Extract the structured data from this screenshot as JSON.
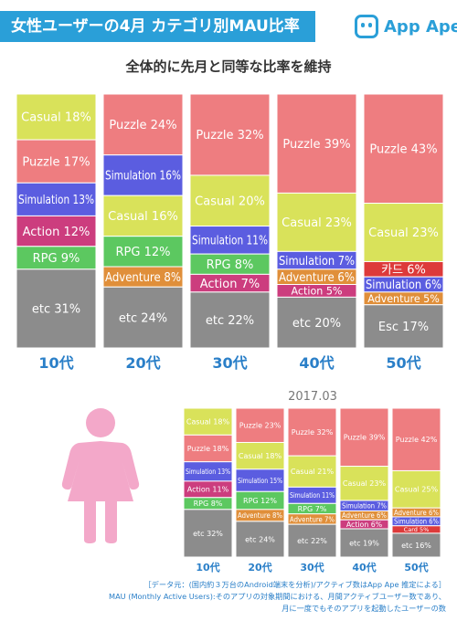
{
  "header": {
    "title": "女性ユーザーの4月 カテゴリ別MAU比率",
    "brand": "App Ape",
    "brand_icon": "app-ape-logo-icon",
    "subtitle": "全体的に先月と同等な比率を維持"
  },
  "secondary": {
    "date_label": "2017.03",
    "icon": "female-person-icon"
  },
  "footer": {
    "line1": "［データ元：(国内約３万台のAndroid端末を分析)/アクティブ数はApp Ape 推定による］",
    "line2": "MAU (Monthly Active Users):そのアプリの対象期間における、月間アクティブユーザー数であり、",
    "line3": "月に一度でもそのアプリを起動したユーザーの数"
  },
  "colors": {
    "Casual": "#d9e25a",
    "Puzzle": "#ee7d80",
    "Simulation": "#5b5de0",
    "Action": "#cc3d7e",
    "RPG": "#5cc860",
    "Adventure": "#e08f3a",
    "etc": "#8c8c8c",
    "カード": "#dd3a3a",
    "Card": "#dd3a3a",
    "Esc": "#8c8c8c",
    "age_label": "#2a7fc8",
    "title_bg": "#2a9fd8"
  },
  "chart_data": [
    {
      "type": "bar",
      "stacked": true,
      "percent": true,
      "title": "",
      "categories": [
        "10代",
        "20代",
        "30代",
        "40代",
        "50代"
      ],
      "columns": [
        {
          "label": "10代",
          "segments": [
            {
              "name": "Casual",
              "label": "Casual 18%",
              "value": 18
            },
            {
              "name": "Puzzle",
              "label": "Puzzle 17%",
              "value": 17
            },
            {
              "name": "Simulation",
              "label": "Simulation 13%",
              "value": 13
            },
            {
              "name": "Action",
              "label": "Action 12%",
              "value": 12
            },
            {
              "name": "RPG",
              "label": "RPG 9%",
              "value": 9
            },
            {
              "name": "etc",
              "label": "etc 31%",
              "value": 31
            }
          ]
        },
        {
          "label": "20代",
          "segments": [
            {
              "name": "Puzzle",
              "label": "Puzzle 24%",
              "value": 24
            },
            {
              "name": "Simulation",
              "label": "Simulation 16%",
              "value": 16
            },
            {
              "name": "Casual",
              "label": "Casual 16%",
              "value": 16
            },
            {
              "name": "RPG",
              "label": "RPG 12%",
              "value": 12
            },
            {
              "name": "Adventure",
              "label": "Adventure 8%",
              "value": 8
            },
            {
              "name": "etc",
              "label": "etc 24%",
              "value": 24
            }
          ]
        },
        {
          "label": "30代",
          "segments": [
            {
              "name": "Puzzle",
              "label": "Puzzle 32%",
              "value": 32
            },
            {
              "name": "Casual",
              "label": "Casual 20%",
              "value": 20
            },
            {
              "name": "Simulation",
              "label": "Simulation 11%",
              "value": 11
            },
            {
              "name": "RPG",
              "label": "RPG 8%",
              "value": 8
            },
            {
              "name": "Action",
              "label": "Action 7%",
              "value": 7
            },
            {
              "name": "etc",
              "label": "etc 22%",
              "value": 22
            }
          ]
        },
        {
          "label": "40代",
          "segments": [
            {
              "name": "Puzzle",
              "label": "Puzzle 39%",
              "value": 39
            },
            {
              "name": "Casual",
              "label": "Casual 23%",
              "value": 23
            },
            {
              "name": "Simulation",
              "label": "Simulation 7%",
              "value": 7
            },
            {
              "name": "Adventure",
              "label": "Adventure 6%",
              "value": 6
            },
            {
              "name": "Action",
              "label": "Action 5%",
              "value": 5
            },
            {
              "name": "etc",
              "label": "etc 20%",
              "value": 20
            }
          ]
        },
        {
          "label": "50代",
          "segments": [
            {
              "name": "Puzzle",
              "label": "Puzzle 43%",
              "value": 43
            },
            {
              "name": "Casual",
              "label": "Casual 23%",
              "value": 23
            },
            {
              "name": "カード",
              "label": "카드 6%",
              "value": 6
            },
            {
              "name": "Simulation",
              "label": "Simulation 6%",
              "value": 6
            },
            {
              "name": "Adventure",
              "label": "Adventure 5%",
              "value": 5
            },
            {
              "name": "Esc",
              "label": "Esc 17%",
              "value": 17
            }
          ]
        }
      ]
    },
    {
      "type": "bar",
      "stacked": true,
      "percent": true,
      "title": "2017.03",
      "categories": [
        "10代",
        "20代",
        "30代",
        "40代",
        "50代"
      ],
      "columns": [
        {
          "label": "10代",
          "segments": [
            {
              "name": "Casual",
              "label": "Casual 18%",
              "value": 18
            },
            {
              "name": "Puzzle",
              "label": "Puzzle 18%",
              "value": 18
            },
            {
              "name": "Simulation",
              "label": "Simulation 13%",
              "value": 13
            },
            {
              "name": "Action",
              "label": "Action 11%",
              "value": 11
            },
            {
              "name": "RPG",
              "label": "RPG 8%",
              "value": 8
            },
            {
              "name": "etc",
              "label": "etc 32%",
              "value": 32
            }
          ]
        },
        {
          "label": "20代",
          "segments": [
            {
              "name": "Puzzle",
              "label": "Puzzle 23%",
              "value": 23
            },
            {
              "name": "Casual",
              "label": "Casual 18%",
              "value": 18
            },
            {
              "name": "Simulation",
              "label": "Simulation 15%",
              "value": 15
            },
            {
              "name": "RPG",
              "label": "RPG 12%",
              "value": 12
            },
            {
              "name": "Adventure",
              "label": "Adventure 8%",
              "value": 8
            },
            {
              "name": "etc",
              "label": "etc 24%",
              "value": 24
            }
          ]
        },
        {
          "label": "30代",
          "segments": [
            {
              "name": "Puzzle",
              "label": "Puzzle 32%",
              "value": 32
            },
            {
              "name": "Casual",
              "label": "Casual 21%",
              "value": 21
            },
            {
              "name": "Simulation",
              "label": "Simulation 11%",
              "value": 11
            },
            {
              "name": "RPG",
              "label": "RPG 7%",
              "value": 7
            },
            {
              "name": "Adventure",
              "label": "Adventure 7%",
              "value": 7
            },
            {
              "name": "etc",
              "label": "etc 22%",
              "value": 22
            }
          ]
        },
        {
          "label": "40代",
          "segments": [
            {
              "name": "Puzzle",
              "label": "Puzzle 39%",
              "value": 39
            },
            {
              "name": "Casual",
              "label": "Casual 23%",
              "value": 23
            },
            {
              "name": "Simulation",
              "label": "Simulation 7%",
              "value": 7
            },
            {
              "name": "Adventure",
              "label": "Adventure 6%",
              "value": 6
            },
            {
              "name": "Action",
              "label": "Action 6%",
              "value": 6
            },
            {
              "name": "etc",
              "label": "etc 19%",
              "value": 19
            }
          ]
        },
        {
          "label": "50代",
          "segments": [
            {
              "name": "Puzzle",
              "label": "Puzzle 42%",
              "value": 42
            },
            {
              "name": "Casual",
              "label": "Casual 25%",
              "value": 25
            },
            {
              "name": "Adventure",
              "label": "Adventure 6%",
              "value": 6
            },
            {
              "name": "Simulation",
              "label": "Simulation 6%",
              "value": 6
            },
            {
              "name": "Card",
              "label": "Card 5%",
              "value": 5
            },
            {
              "name": "etc",
              "label": "etc 16%",
              "value": 16
            }
          ]
        }
      ]
    }
  ]
}
